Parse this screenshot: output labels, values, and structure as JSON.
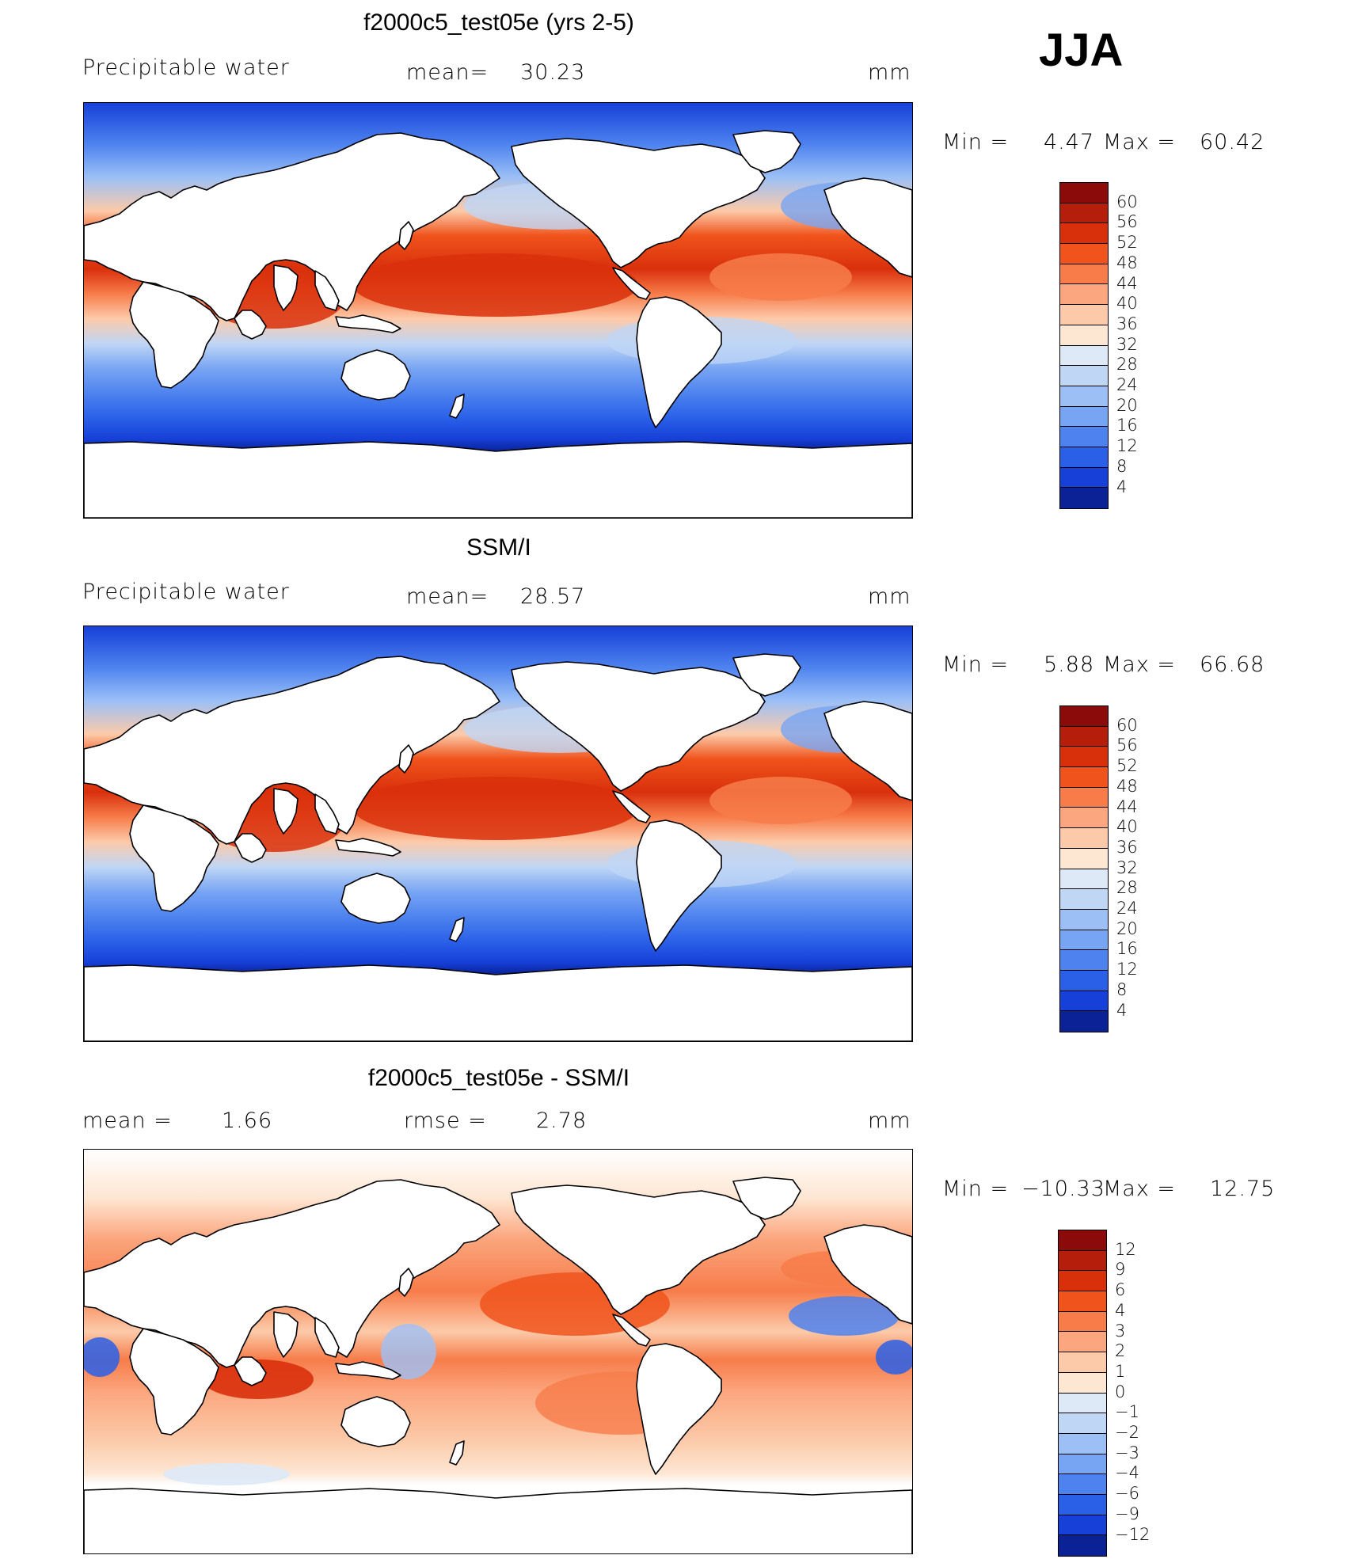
{
  "season": "JJA",
  "panels": [
    {
      "title": "f2000c5_test05e (yrs 2-5)",
      "left_label": "Precipitable water",
      "center_label": "mean=",
      "center_value": "30.23",
      "right_label": "",
      "right_value": "",
      "units": "mm",
      "min_label": "Min  =",
      "min_value": "4.47",
      "max_label": "Max  =",
      "max_value": "60.42",
      "kind": "model",
      "colorbar": {
        "labels": [
          "60",
          "56",
          "52",
          "48",
          "44",
          "40",
          "36",
          "32",
          "28",
          "24",
          "20",
          "16",
          "12",
          "8",
          "4"
        ],
        "colors": [
          "#8b0a0a",
          "#b51e0a",
          "#d9300c",
          "#f0531c",
          "#f77c4a",
          "#fba67e",
          "#fccaa9",
          "#fde6d2",
          "#dde9f7",
          "#bfd6f5",
          "#9cc0f6",
          "#78a5f3",
          "#4e83ef",
          "#2a60e8",
          "#1640d8",
          "#0a2296"
        ]
      }
    },
    {
      "title": "SSM/I",
      "left_label": "Precipitable water",
      "center_label": "mean=",
      "center_value": "28.57",
      "right_label": "",
      "right_value": "",
      "units": "mm",
      "min_label": "Min  =",
      "min_value": "5.88",
      "max_label": "Max  =",
      "max_value": "66.68",
      "kind": "obs",
      "colorbar": {
        "labels": [
          "60",
          "56",
          "52",
          "48",
          "44",
          "40",
          "36",
          "32",
          "28",
          "24",
          "20",
          "16",
          "12",
          "8",
          "4"
        ],
        "colors": [
          "#8b0a0a",
          "#b51e0a",
          "#d9300c",
          "#f0531c",
          "#f77c4a",
          "#fba67e",
          "#fccaa9",
          "#fde6d2",
          "#dde9f7",
          "#bfd6f5",
          "#9cc0f6",
          "#78a5f3",
          "#4e83ef",
          "#2a60e8",
          "#1640d8",
          "#0a2296"
        ]
      }
    },
    {
      "title": "f2000c5_test05e - SSM/I",
      "left_label": "mean  =",
      "left_value": "1.66",
      "center_label": "rmse  =",
      "center_value": "2.78",
      "units": "mm",
      "min_label": "Min  =",
      "min_value": "−10.33",
      "max_label": "Max  =",
      "max_value": "12.75",
      "kind": "diff",
      "colorbar": {
        "labels": [
          "12",
          "9",
          "6",
          "4",
          "3",
          "2",
          "1",
          "0",
          "−1",
          "−2",
          "−3",
          "−4",
          "−6",
          "−9",
          "−12"
        ],
        "colors": [
          "#8b0a0a",
          "#b51e0a",
          "#d9300c",
          "#f0531c",
          "#f77c4a",
          "#fba67e",
          "#fccaa9",
          "#fde6d2",
          "#dde9f7",
          "#bfd6f5",
          "#9cc0f6",
          "#78a5f3",
          "#4e83ef",
          "#2a60e8",
          "#1640d8",
          "#0a2296"
        ]
      }
    }
  ]
}
